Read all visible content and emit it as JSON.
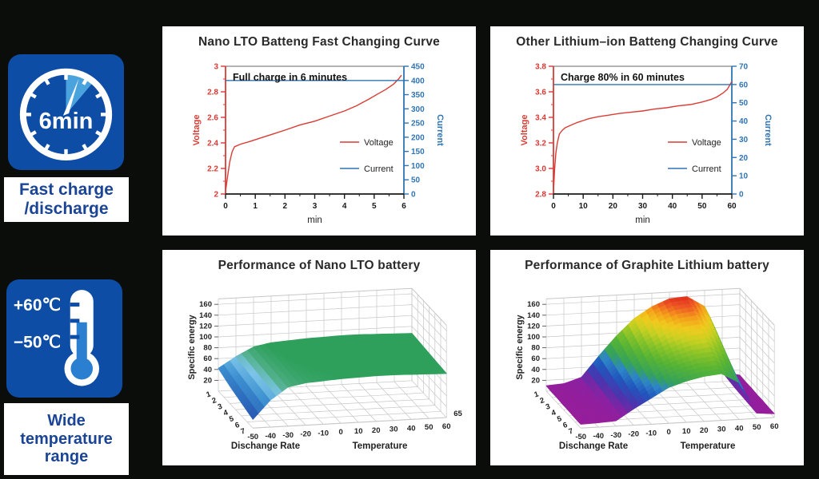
{
  "page": {
    "background": "#0a0d0a"
  },
  "badges": {
    "colors": {
      "badge_bg": "#0d4da5",
      "accent_light_blue": "#4aa3dc",
      "caption_text": "#1a4496",
      "fluid_blue": "#2a7fd0"
    },
    "fast_charge": {
      "icon": "clock-6min",
      "clock_text": "6min",
      "caption_lines": [
        "Fast charge",
        "/discharge"
      ]
    },
    "temperature": {
      "icon": "thermometer",
      "high_label": "+60℃",
      "low_label": "−50℃",
      "caption_lines": [
        "Wide",
        "temperature",
        "range"
      ]
    }
  },
  "chart_data": [
    {
      "type": "line",
      "title": "Nano LTO Batteng Fast Changing Curve",
      "annotation": "Full charge in 6 minutes",
      "xlabel": "min",
      "xlim": [
        0,
        6
      ],
      "x_ticks": [
        [
          0,
          "0"
        ],
        [
          1,
          "1"
        ],
        [
          2,
          "2"
        ],
        [
          3,
          "3"
        ],
        [
          4,
          "4"
        ],
        [
          5,
          "5"
        ],
        [
          6,
          "6"
        ]
      ],
      "x_minor_step": 0.5,
      "left_axis": {
        "label": "Voltage",
        "color": "#d93c35",
        "lim": [
          2,
          3
        ],
        "ticks": [
          [
            2,
            "2"
          ],
          [
            2.2,
            "2.2"
          ],
          [
            2.4,
            "2.4"
          ],
          [
            2.6,
            "2.6"
          ],
          [
            2.8,
            "2.8"
          ],
          [
            3,
            "3"
          ]
        ],
        "minor_step": 0.1
      },
      "right_axis": {
        "label": "Current",
        "color": "#2f74b5",
        "lim": [
          0,
          450
        ],
        "ticks": [
          [
            0,
            "0"
          ],
          [
            50,
            "50"
          ],
          [
            100,
            "100"
          ],
          [
            150,
            "150"
          ],
          [
            200,
            "200"
          ],
          [
            250,
            "250"
          ],
          [
            300,
            "300"
          ],
          [
            350,
            "350"
          ],
          [
            400,
            "400"
          ],
          [
            450,
            "450"
          ]
        ]
      },
      "legend": [
        {
          "label": "Voltage",
          "color": "#d93c35"
        },
        {
          "label": "Current",
          "color": "#2f74b5"
        }
      ],
      "series": [
        {
          "name": "Voltage",
          "axis": "left",
          "color": "#d93c35",
          "points": [
            [
              0,
              2.02
            ],
            [
              0.07,
              2.14
            ],
            [
              0.14,
              2.25
            ],
            [
              0.22,
              2.33
            ],
            [
              0.3,
              2.37
            ],
            [
              0.5,
              2.39
            ],
            [
              0.8,
              2.41
            ],
            [
              1.2,
              2.44
            ],
            [
              1.6,
              2.47
            ],
            [
              2,
              2.5
            ],
            [
              2.5,
              2.54
            ],
            [
              3,
              2.57
            ],
            [
              3.5,
              2.61
            ],
            [
              4,
              2.65
            ],
            [
              4.4,
              2.69
            ],
            [
              4.8,
              2.74
            ],
            [
              5.1,
              2.78
            ],
            [
              5.4,
              2.82
            ],
            [
              5.65,
              2.86
            ],
            [
              5.82,
              2.9
            ],
            [
              5.92,
              2.93
            ]
          ]
        },
        {
          "name": "Current",
          "axis": "right",
          "color": "#2f74b5",
          "points": [
            [
              0,
              400
            ],
            [
              6,
              400
            ]
          ]
        }
      ]
    },
    {
      "type": "line",
      "title": "Other Lithium–ion Batteng Changing Curve",
      "annotation": "Charge 80% in 60 minutes",
      "xlabel": "min",
      "xlim": [
        0,
        60
      ],
      "x_ticks": [
        [
          0,
          "0"
        ],
        [
          10,
          "10"
        ],
        [
          20,
          "20"
        ],
        [
          30,
          "30"
        ],
        [
          40,
          "40"
        ],
        [
          50,
          "50"
        ],
        [
          60,
          "60"
        ]
      ],
      "x_minor_step": 5,
      "left_axis": {
        "label": "Voltage",
        "color": "#d93c35",
        "lim": [
          2.8,
          3.8
        ],
        "ticks": [
          [
            2.8,
            "2.8"
          ],
          [
            3.0,
            "3.0"
          ],
          [
            3.2,
            "3.2"
          ],
          [
            3.4,
            "3.4"
          ],
          [
            3.6,
            "3.6"
          ],
          [
            3.8,
            "3.8"
          ]
        ],
        "minor_step": 0.1
      },
      "right_axis": {
        "label": "Current",
        "color": "#2f74b5",
        "lim": [
          0,
          70
        ],
        "ticks": [
          [
            0,
            "0"
          ],
          [
            10,
            "10"
          ],
          [
            20,
            "20"
          ],
          [
            30,
            "30"
          ],
          [
            40,
            "40"
          ],
          [
            50,
            "50"
          ],
          [
            60,
            "60"
          ],
          [
            70,
            "70"
          ]
        ]
      },
      "legend": [
        {
          "label": "Voltage",
          "color": "#d93c35"
        },
        {
          "label": "Current",
          "color": "#2f74b5"
        }
      ],
      "series": [
        {
          "name": "Voltage",
          "axis": "left",
          "color": "#d93c35",
          "points": [
            [
              0,
              2.82
            ],
            [
              0.4,
              3.0
            ],
            [
              0.8,
              3.12
            ],
            [
              1.3,
              3.2
            ],
            [
              2,
              3.27
            ],
            [
              3,
              3.3
            ],
            [
              4,
              3.32
            ],
            [
              6,
              3.34
            ],
            [
              8,
              3.36
            ],
            [
              10,
              3.375
            ],
            [
              12,
              3.39
            ],
            [
              15,
              3.405
            ],
            [
              18,
              3.415
            ],
            [
              22,
              3.43
            ],
            [
              26,
              3.44
            ],
            [
              30,
              3.45
            ],
            [
              34,
              3.465
            ],
            [
              38,
              3.475
            ],
            [
              42,
              3.49
            ],
            [
              46,
              3.5
            ],
            [
              50,
              3.52
            ],
            [
              53,
              3.54
            ],
            [
              55,
              3.56
            ],
            [
              57,
              3.59
            ],
            [
              58.5,
              3.62
            ],
            [
              59.5,
              3.66
            ],
            [
              60,
              3.68
            ]
          ]
        },
        {
          "name": "Current",
          "axis": "right",
          "color": "#2f74b5",
          "points": [
            [
              0,
              60
            ],
            [
              60,
              60
            ]
          ]
        }
      ]
    },
    {
      "type": "surface",
      "title": "Performance of Nano LTO battery",
      "zlabel": "Specific energy",
      "xlabel": "Temperature",
      "ylabel": "Dischange Rate",
      "corner_label": "65",
      "zlim": [
        0,
        170
      ],
      "z_ticks": [
        [
          20,
          "20"
        ],
        [
          40,
          "40"
        ],
        [
          60,
          "60"
        ],
        [
          80,
          "80"
        ],
        [
          100,
          "100"
        ],
        [
          120,
          "120"
        ],
        [
          140,
          "140"
        ],
        [
          160,
          "160"
        ]
      ],
      "x_ticks": [
        [
          -50,
          "-50"
        ],
        [
          -40,
          "-40"
        ],
        [
          -30,
          "-30"
        ],
        [
          -20,
          "-20"
        ],
        [
          -10,
          "-10"
        ],
        [
          0,
          "0"
        ],
        [
          10,
          "10"
        ],
        [
          20,
          "20"
        ],
        [
          30,
          "30"
        ],
        [
          40,
          "40"
        ],
        [
          50,
          "50"
        ],
        [
          60,
          "60"
        ]
      ],
      "y_ticks": [
        [
          1,
          "1"
        ],
        [
          2,
          "2"
        ],
        [
          3,
          "3"
        ],
        [
          4,
          "4"
        ],
        [
          5,
          "5"
        ],
        [
          6,
          "6"
        ],
        [
          7,
          "7"
        ]
      ],
      "colormap": [
        [
          0,
          "#16418f"
        ],
        [
          25,
          "#2a62b8"
        ],
        [
          45,
          "#3c8fd0"
        ],
        [
          60,
          "#7cc4e8"
        ],
        [
          70,
          "#52b08a"
        ],
        [
          82,
          "#2fa05c"
        ],
        [
          160,
          "#2aa05a"
        ]
      ],
      "values": [
        [
          42,
          62,
          78,
          84,
          86,
          88,
          89,
          90,
          90,
          89,
          88,
          87
        ],
        [
          37,
          60,
          77,
          83,
          85,
          87,
          88,
          89,
          89,
          88,
          87,
          86
        ],
        [
          32,
          58,
          76,
          82,
          84,
          86,
          87,
          88,
          88,
          87,
          86,
          85
        ],
        [
          28,
          56,
          75,
          81,
          83,
          85,
          86,
          87,
          87,
          86,
          85,
          84
        ],
        [
          24,
          54,
          74,
          80,
          82,
          84,
          85,
          86,
          86,
          85,
          84,
          83
        ],
        [
          20,
          52,
          73,
          79,
          81,
          83,
          84,
          85,
          85,
          84,
          83,
          82
        ],
        [
          16,
          50,
          72,
          78,
          80,
          82,
          83,
          84,
          84,
          83,
          82,
          81
        ]
      ]
    },
    {
      "type": "surface",
      "title": "Performance of Graphite Lithium battery",
      "zlabel": "Specific energy",
      "xlabel": "Temperature",
      "ylabel": "Dischange Rate",
      "corner_label": "",
      "zlim": [
        0,
        170
      ],
      "z_ticks": [
        [
          20,
          "20"
        ],
        [
          40,
          "40"
        ],
        [
          60,
          "60"
        ],
        [
          80,
          "80"
        ],
        [
          100,
          "100"
        ],
        [
          120,
          "120"
        ],
        [
          140,
          "140"
        ],
        [
          160,
          "160"
        ]
      ],
      "x_ticks": [
        [
          -50,
          "-50"
        ],
        [
          -40,
          "-40"
        ],
        [
          -30,
          "-30"
        ],
        [
          -20,
          "-20"
        ],
        [
          -10,
          "-10"
        ],
        [
          0,
          "0"
        ],
        [
          10,
          "10"
        ],
        [
          20,
          "20"
        ],
        [
          30,
          "30"
        ],
        [
          40,
          "40"
        ],
        [
          50,
          "50"
        ],
        [
          60,
          "60"
        ]
      ],
      "y_ticks": [
        [
          1,
          "1"
        ],
        [
          2,
          "2"
        ],
        [
          3,
          "3"
        ],
        [
          4,
          "4"
        ],
        [
          5,
          "5"
        ],
        [
          6,
          "6"
        ],
        [
          7,
          "7"
        ]
      ],
      "colormap": [
        [
          0,
          "#9c1c97"
        ],
        [
          20,
          "#8b21a2"
        ],
        [
          35,
          "#4a35ae"
        ],
        [
          50,
          "#2156bc"
        ],
        [
          62,
          "#2e86c8"
        ],
        [
          72,
          "#35a25a"
        ],
        [
          90,
          "#58b434"
        ],
        [
          105,
          "#8cc428"
        ],
        [
          118,
          "#c8d022"
        ],
        [
          130,
          "#f0cb1e"
        ],
        [
          141,
          "#f49e1b"
        ],
        [
          151,
          "#ee5a24"
        ],
        [
          160,
          "#e02a1e"
        ]
      ],
      "values": [
        [
          10,
          12,
          22,
          60,
          95,
          125,
          145,
          158,
          160,
          140,
          18,
          10
        ],
        [
          9,
          11,
          20,
          55,
          88,
          116,
          136,
          148,
          152,
          130,
          16,
          9
        ],
        [
          9,
          10,
          18,
          50,
          80,
          106,
          124,
          136,
          140,
          118,
          14,
          9
        ],
        [
          8,
          10,
          16,
          45,
          72,
          96,
          111,
          122,
          126,
          105,
          13,
          8
        ],
        [
          8,
          9,
          14,
          40,
          64,
          86,
          99,
          108,
          112,
          92,
          12,
          8
        ],
        [
          7,
          9,
          12,
          35,
          56,
          76,
          87,
          95,
          98,
          80,
          11,
          7
        ],
        [
          7,
          8,
          10,
          30,
          48,
          66,
          76,
          83,
          86,
          68,
          10,
          7
        ]
      ]
    }
  ]
}
